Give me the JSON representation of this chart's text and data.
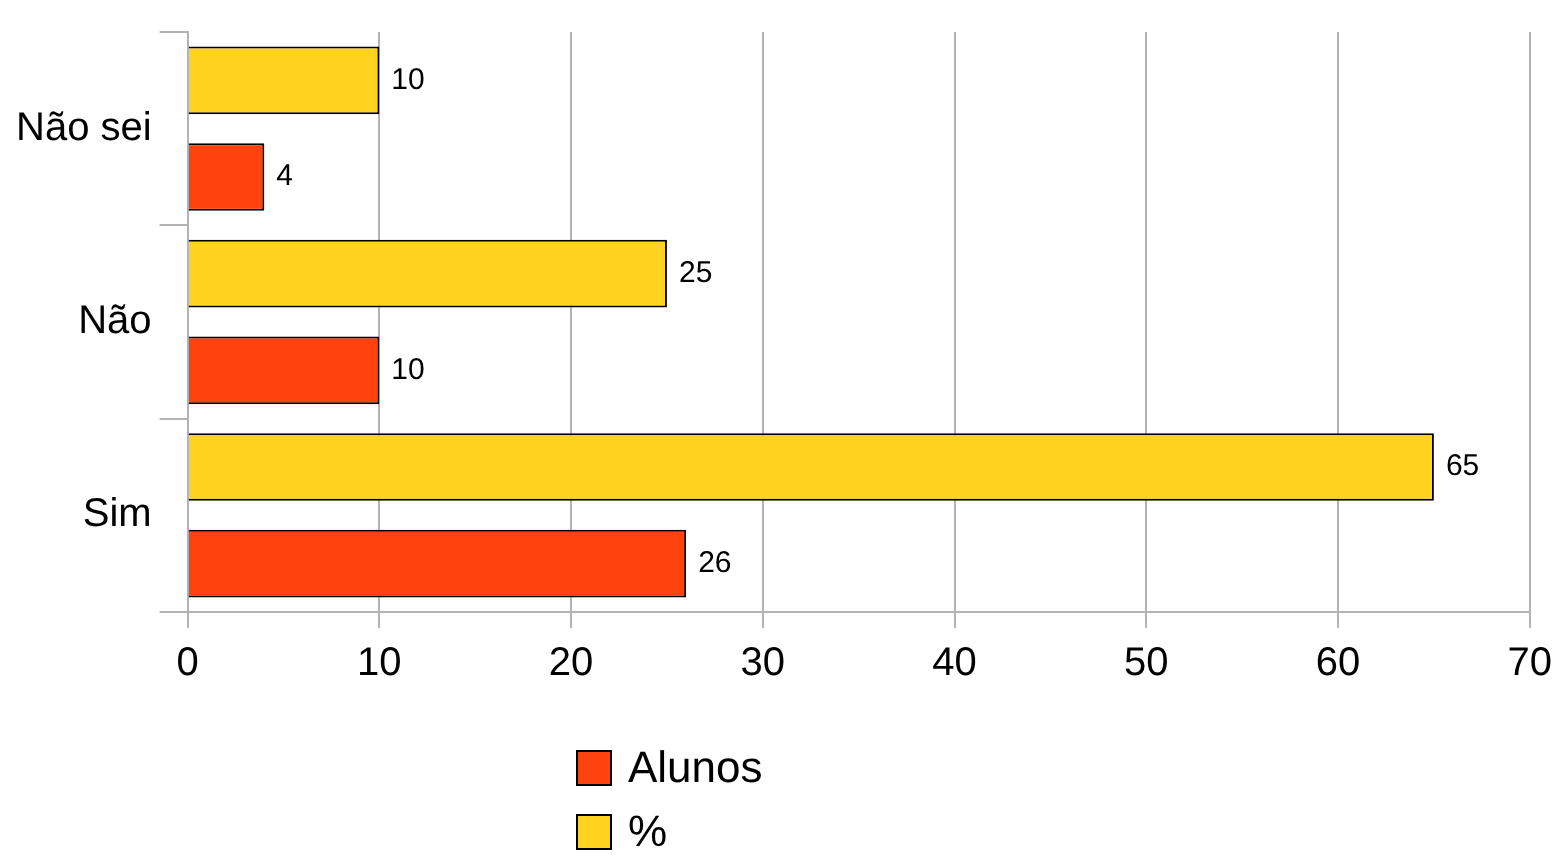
{
  "chart_data": {
    "type": "bar",
    "orientation": "horizontal",
    "categories": [
      "Não sei",
      "Não",
      "Sim"
    ],
    "series": [
      {
        "name": "Alunos",
        "color": "#ff420e",
        "values": [
          4,
          10,
          26
        ]
      },
      {
        "name": "%",
        "color": "#ffd320",
        "values": [
          10,
          25,
          65
        ]
      }
    ],
    "xlim": [
      0,
      70
    ],
    "xticks": [
      0,
      10,
      20,
      30,
      40,
      50,
      60,
      70
    ],
    "grid": "x",
    "legend": "bottom",
    "data_labels": true
  }
}
